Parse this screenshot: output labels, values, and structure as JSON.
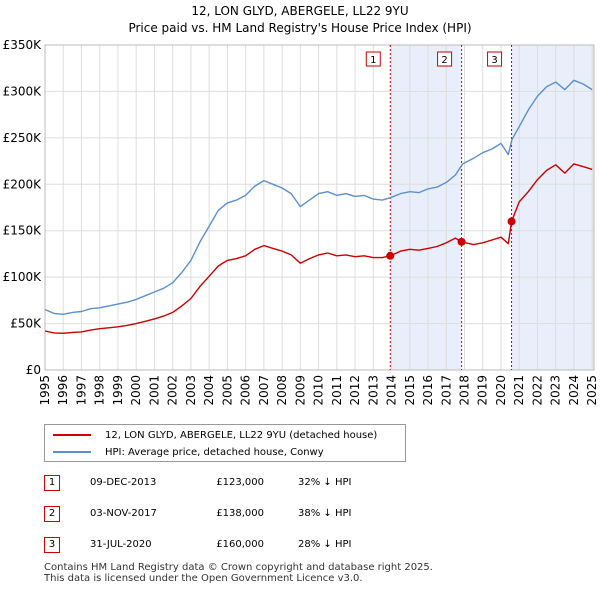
{
  "title_line1": "12, LON GLYD, ABERGELE, LL22 9YU",
  "title_line2": "Price paid vs. HM Land Registry's House Price Index (HPI)",
  "colors": {
    "property": "#cc0000",
    "hpi": "#5b8fd0",
    "shade": "#e8eefa",
    "vline": "#cc0000"
  },
  "chart_data": {
    "type": "line",
    "title": "Price paid vs. HM Land Registry's House Price Index (HPI)",
    "xlim": [
      1995,
      2025.1
    ],
    "ylim": [
      0,
      350000
    ],
    "x_ticks": [
      1995,
      1996,
      1997,
      1998,
      1999,
      2000,
      2001,
      2002,
      2003,
      2004,
      2005,
      2006,
      2007,
      2008,
      2009,
      2010,
      2011,
      2012,
      2013,
      2014,
      2015,
      2016,
      2017,
      2018,
      2019,
      2020,
      2021,
      2022,
      2023,
      2024,
      2025
    ],
    "y_ticks": [
      {
        "value": 0,
        "label": "£0"
      },
      {
        "value": 50000,
        "label": "£50K"
      },
      {
        "value": 100000,
        "label": "£100K"
      },
      {
        "value": 150000,
        "label": "£150K"
      },
      {
        "value": 200000,
        "label": "£200K"
      },
      {
        "value": 250000,
        "label": "£250K"
      },
      {
        "value": 300000,
        "label": "£300K"
      },
      {
        "value": 350000,
        "label": "£350K"
      }
    ],
    "series": [
      {
        "name": "HPI: Average price, detached house, Conwy",
        "color": "#5b8fd0",
        "points": [
          [
            1995.0,
            65000
          ],
          [
            1995.5,
            61000
          ],
          [
            1996.0,
            60000
          ],
          [
            1996.5,
            62000
          ],
          [
            1997.0,
            63000
          ],
          [
            1997.5,
            66000
          ],
          [
            1998.0,
            67000
          ],
          [
            1998.5,
            69000
          ],
          [
            1999.0,
            71000
          ],
          [
            1999.5,
            73000
          ],
          [
            2000.0,
            76000
          ],
          [
            2000.5,
            80000
          ],
          [
            2001.0,
            84000
          ],
          [
            2001.5,
            88000
          ],
          [
            2002.0,
            94000
          ],
          [
            2002.5,
            105000
          ],
          [
            2003.0,
            118000
          ],
          [
            2003.5,
            138000
          ],
          [
            2004.0,
            155000
          ],
          [
            2004.5,
            172000
          ],
          [
            2005.0,
            180000
          ],
          [
            2005.5,
            183000
          ],
          [
            2006.0,
            188000
          ],
          [
            2006.5,
            198000
          ],
          [
            2007.0,
            204000
          ],
          [
            2007.5,
            200000
          ],
          [
            2008.0,
            196000
          ],
          [
            2008.5,
            190000
          ],
          [
            2009.0,
            176000
          ],
          [
            2009.5,
            183000
          ],
          [
            2010.0,
            190000
          ],
          [
            2010.5,
            192000
          ],
          [
            2011.0,
            188000
          ],
          [
            2011.5,
            190000
          ],
          [
            2012.0,
            187000
          ],
          [
            2012.5,
            188000
          ],
          [
            2013.0,
            184000
          ],
          [
            2013.5,
            183000
          ],
          [
            2014.0,
            186000
          ],
          [
            2014.5,
            190000
          ],
          [
            2015.0,
            192000
          ],
          [
            2015.5,
            191000
          ],
          [
            2016.0,
            195000
          ],
          [
            2016.5,
            197000
          ],
          [
            2017.0,
            202000
          ],
          [
            2017.5,
            210000
          ],
          [
            2017.9,
            222000
          ],
          [
            2018.5,
            228000
          ],
          [
            2019.0,
            234000
          ],
          [
            2019.5,
            238000
          ],
          [
            2020.0,
            244000
          ],
          [
            2020.4,
            232000
          ],
          [
            2020.6,
            248000
          ],
          [
            2021.0,
            262000
          ],
          [
            2021.5,
            280000
          ],
          [
            2022.0,
            295000
          ],
          [
            2022.5,
            305000
          ],
          [
            2023.0,
            310000
          ],
          [
            2023.5,
            302000
          ],
          [
            2024.0,
            312000
          ],
          [
            2024.5,
            308000
          ],
          [
            2025.0,
            302000
          ]
        ]
      },
      {
        "name": "12, LON GLYD, ABERGELE, LL22 9YU (detached house)",
        "color": "#cc0000",
        "points": [
          [
            1995.0,
            42000
          ],
          [
            1995.5,
            40000
          ],
          [
            1996.0,
            39500
          ],
          [
            1996.5,
            40500
          ],
          [
            1997.0,
            41000
          ],
          [
            1997.5,
            43000
          ],
          [
            1998.0,
            44500
          ],
          [
            1998.5,
            45500
          ],
          [
            1999.0,
            46500
          ],
          [
            1999.5,
            48000
          ],
          [
            2000.0,
            50000
          ],
          [
            2000.5,
            52500
          ],
          [
            2001.0,
            55000
          ],
          [
            2001.5,
            58000
          ],
          [
            2002.0,
            62000
          ],
          [
            2002.5,
            69000
          ],
          [
            2003.0,
            77000
          ],
          [
            2003.5,
            90000
          ],
          [
            2004.0,
            101000
          ],
          [
            2004.5,
            112000
          ],
          [
            2005.0,
            118000
          ],
          [
            2005.5,
            120000
          ],
          [
            2006.0,
            123000
          ],
          [
            2006.5,
            130000
          ],
          [
            2007.0,
            134000
          ],
          [
            2007.5,
            131000
          ],
          [
            2008.0,
            128000
          ],
          [
            2008.5,
            124000
          ],
          [
            2009.0,
            115000
          ],
          [
            2009.5,
            120000
          ],
          [
            2010.0,
            124000
          ],
          [
            2010.5,
            126000
          ],
          [
            2011.0,
            123000
          ],
          [
            2011.5,
            124000
          ],
          [
            2012.0,
            122000
          ],
          [
            2012.5,
            123000
          ],
          [
            2013.0,
            121000
          ],
          [
            2013.5,
            121000
          ],
          [
            2013.93,
            123000
          ],
          [
            2014.5,
            128000
          ],
          [
            2015.0,
            130000
          ],
          [
            2015.5,
            129000
          ],
          [
            2016.0,
            131000
          ],
          [
            2016.5,
            133000
          ],
          [
            2017.0,
            137000
          ],
          [
            2017.5,
            142000
          ],
          [
            2017.84,
            138000
          ],
          [
            2018.5,
            135000
          ],
          [
            2019.0,
            137000
          ],
          [
            2019.5,
            140000
          ],
          [
            2020.0,
            143000
          ],
          [
            2020.4,
            136000
          ],
          [
            2020.58,
            160000
          ],
          [
            2021.0,
            181000
          ],
          [
            2021.5,
            192000
          ],
          [
            2022.0,
            205000
          ],
          [
            2022.5,
            215000
          ],
          [
            2023.0,
            221000
          ],
          [
            2023.5,
            212000
          ],
          [
            2024.0,
            222000
          ],
          [
            2024.5,
            219000
          ],
          [
            2025.0,
            216000
          ]
        ]
      }
    ],
    "sales": [
      {
        "num": "1",
        "x": 2013.93,
        "price": 123000
      },
      {
        "num": "2",
        "x": 2017.84,
        "price": 138000
      },
      {
        "num": "3",
        "x": 2020.58,
        "price": 160000
      }
    ],
    "shaded_ranges": [
      [
        2013.93,
        2017.84
      ],
      [
        2020.58,
        2025.1
      ]
    ]
  },
  "legend": {
    "property_label": "12, LON GLYD, ABERGELE, LL22 9YU (detached house)",
    "hpi_label": "HPI: Average price, detached house, Conwy"
  },
  "transactions": [
    {
      "num": "1",
      "date": "09-DEC-2013",
      "price": "£123,000",
      "hpi": "32% ↓ HPI"
    },
    {
      "num": "2",
      "date": "03-NOV-2017",
      "price": "£138,000",
      "hpi": "38% ↓ HPI"
    },
    {
      "num": "3",
      "date": "31-JUL-2020",
      "price": "£160,000",
      "hpi": "28% ↓ HPI"
    }
  ],
  "footer": {
    "line1": "Contains HM Land Registry data © Crown copyright and database right 2025.",
    "line2": "This data is licensed under the Open Government Licence v3.0."
  }
}
